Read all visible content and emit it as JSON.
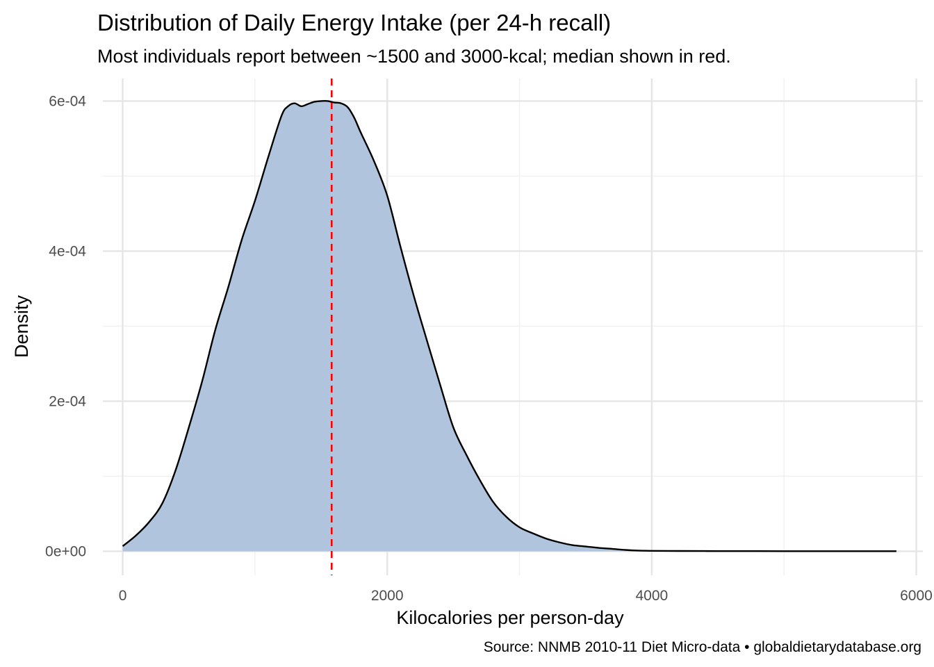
{
  "chart_data": {
    "type": "area",
    "title": "Distribution of Daily Energy Intake (per 24‑h recall)",
    "subtitle": "Most individuals report between ~1500 and 3000‑kcal; median shown in red.",
    "xlabel": "Kilocalories per person‑day",
    "ylabel": "Density",
    "caption": "Source: NNMB 2010‑11 Diet Micro‑data • globaldietarydatabase.org",
    "xlim": [
      -150,
      6050
    ],
    "ylim": [
      -3.2e-05,
      0.00063
    ],
    "x_ticks": [
      0,
      2000,
      4000,
      6000
    ],
    "x_tick_labels": [
      "0",
      "2000",
      "4000",
      "6000"
    ],
    "y_ticks": [
      0,
      0.0002,
      0.0004,
      0.0006
    ],
    "y_tick_labels": [
      "0e+00",
      "2e-04",
      "4e-04",
      "6e-04"
    ],
    "grid": true,
    "fill_color": "#b0c4de",
    "line_color": "#000000",
    "median_color": "#ff0000",
    "median": 1580,
    "x": [
      0,
      100,
      200,
      300,
      400,
      500,
      600,
      700,
      800,
      900,
      1000,
      1100,
      1200,
      1250,
      1300,
      1350,
      1400,
      1450,
      1500,
      1550,
      1600,
      1650,
      1700,
      1750,
      1800,
      1900,
      2000,
      2100,
      2200,
      2300,
      2400,
      2500,
      2600,
      2700,
      2800,
      2900,
      3000,
      3100,
      3200,
      3300,
      3400,
      3500,
      3600,
      3700,
      3800,
      3900,
      4000,
      4200,
      4400,
      4600,
      4800,
      5000,
      5200,
      5400,
      5600,
      5850
    ],
    "values": [
      6.8e-06,
      2.1e-05,
      3.9e-05,
      6.4e-05,
      0.000108,
      0.000165,
      0.000226,
      0.000295,
      0.000353,
      0.000415,
      0.000467,
      0.000525,
      0.00058,
      0.000593,
      0.000597,
      0.000593,
      0.000596,
      0.000599,
      0.0006,
      0.0006,
      0.000598,
      0.000597,
      0.000592,
      0.000578,
      0.000558,
      0.00052,
      0.000474,
      0.000406,
      0.000341,
      0.000281,
      0.000222,
      0.000165,
      0.000128,
      9.5e-05,
      6.6e-05,
      4.6e-05,
      3.2e-05,
      2.4e-05,
      1.7e-05,
      1.2e-05,
      8.2e-06,
      6.4e-06,
      4.5e-06,
      3.2e-06,
      1.8e-06,
      9e-07,
      6e-07,
      4e-07,
      3e-07,
      2e-07,
      2e-07,
      1e-07,
      1e-07,
      1e-07,
      1e-07,
      1e-07
    ]
  }
}
